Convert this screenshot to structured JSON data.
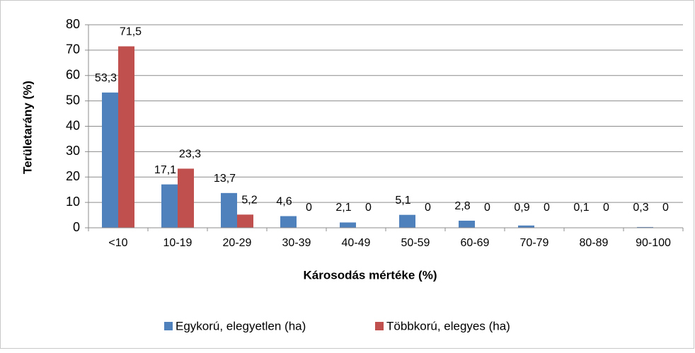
{
  "chart_data": {
    "type": "bar",
    "categories": [
      "<10",
      "10-19",
      "20-29",
      "30-39",
      "40-49",
      "50-59",
      "60-69",
      "70-79",
      "80-89",
      "90-100"
    ],
    "series": [
      {
        "name": "Egykorú, elegyetlen (ha)",
        "color": "#4f81bd",
        "values": [
          53.3,
          17.1,
          13.7,
          4.6,
          2.1,
          5.1,
          2.8,
          0.9,
          0.1,
          0.3
        ],
        "value_labels": [
          "53,3",
          "17,1",
          "13,7",
          "4,6",
          "2,1",
          "5,1",
          "2,8",
          "0,9",
          "0,1",
          "0,3"
        ]
      },
      {
        "name": "Többkorú, elegyes (ha)",
        "color": "#c0504d",
        "values": [
          71.5,
          23.3,
          5.2,
          0,
          0,
          0,
          0,
          0,
          0,
          0
        ],
        "value_labels": [
          "71,5",
          "23,3",
          "5,2",
          "0",
          "0",
          "0",
          "0",
          "0",
          "0",
          "0"
        ]
      }
    ],
    "xlabel": "Károsodás mértéke (%)",
    "ylabel": "Területarány (%)",
    "ylim": [
      0,
      80
    ],
    "yticks": [
      0,
      10,
      20,
      30,
      40,
      50,
      60,
      70,
      80
    ],
    "grid": true,
    "legend": "bottom"
  }
}
